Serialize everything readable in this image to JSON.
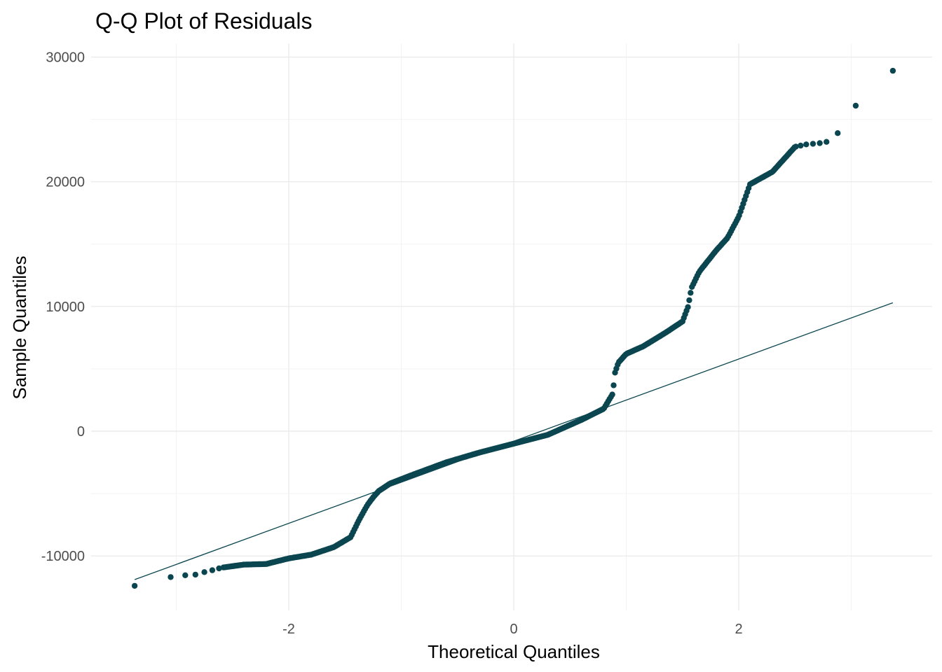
{
  "chart_data": {
    "type": "scatter",
    "title": "Q-Q Plot of Residuals",
    "xlabel": "Theoretical Quantiles",
    "ylabel": "Sample Quantiles",
    "xlim": [
      -3.6,
      3.6
    ],
    "ylim": [
      -13000,
      31000
    ],
    "x_ticks": [
      -2,
      0,
      2
    ],
    "x_tick_labels": [
      "-2",
      "0",
      "2"
    ],
    "y_ticks": [
      -10000,
      0,
      10000,
      20000,
      30000
    ],
    "y_tick_labels": [
      "-10000",
      "0",
      "10000",
      "20000",
      "30000"
    ],
    "grid": true,
    "legend": "none",
    "point_color": "#0b4650",
    "line_color": "#0b4650",
    "reference_line": {
      "x": [
        -3.37,
        3.37
      ],
      "y": [
        -11900,
        10300
      ]
    },
    "control_points": {
      "x": [
        -3.37,
        -3.05,
        -2.85,
        -2.6,
        -2.4,
        -2.2,
        -2.0,
        -1.8,
        -1.6,
        -1.45,
        -1.38,
        -1.35,
        -1.3,
        -1.25,
        -1.2,
        -1.1,
        -0.9,
        -0.6,
        -0.3,
        0,
        0.3,
        0.6,
        0.8,
        0.88,
        0.9,
        0.93,
        1.0,
        1.15,
        1.35,
        1.5,
        1.55,
        1.58,
        1.65,
        1.8,
        1.9,
        2.0,
        2.1,
        2.3,
        2.5,
        2.6,
        2.76,
        2.88,
        3.04,
        3.37
      ],
      "y": [
        -12400,
        -11700,
        -11500,
        -10950,
        -10700,
        -10650,
        -10200,
        -9900,
        -9300,
        -8500,
        -7200,
        -6700,
        -5900,
        -5300,
        -4800,
        -4200,
        -3500,
        -2500,
        -1700,
        -1000,
        -300,
        900,
        1800,
        3000,
        4700,
        5500,
        6200,
        6800,
        7900,
        8800,
        10000,
        11500,
        12800,
        14500,
        15500,
        17200,
        19800,
        20800,
        22800,
        23000,
        23200,
        23900,
        26100,
        28900
      ]
    }
  }
}
